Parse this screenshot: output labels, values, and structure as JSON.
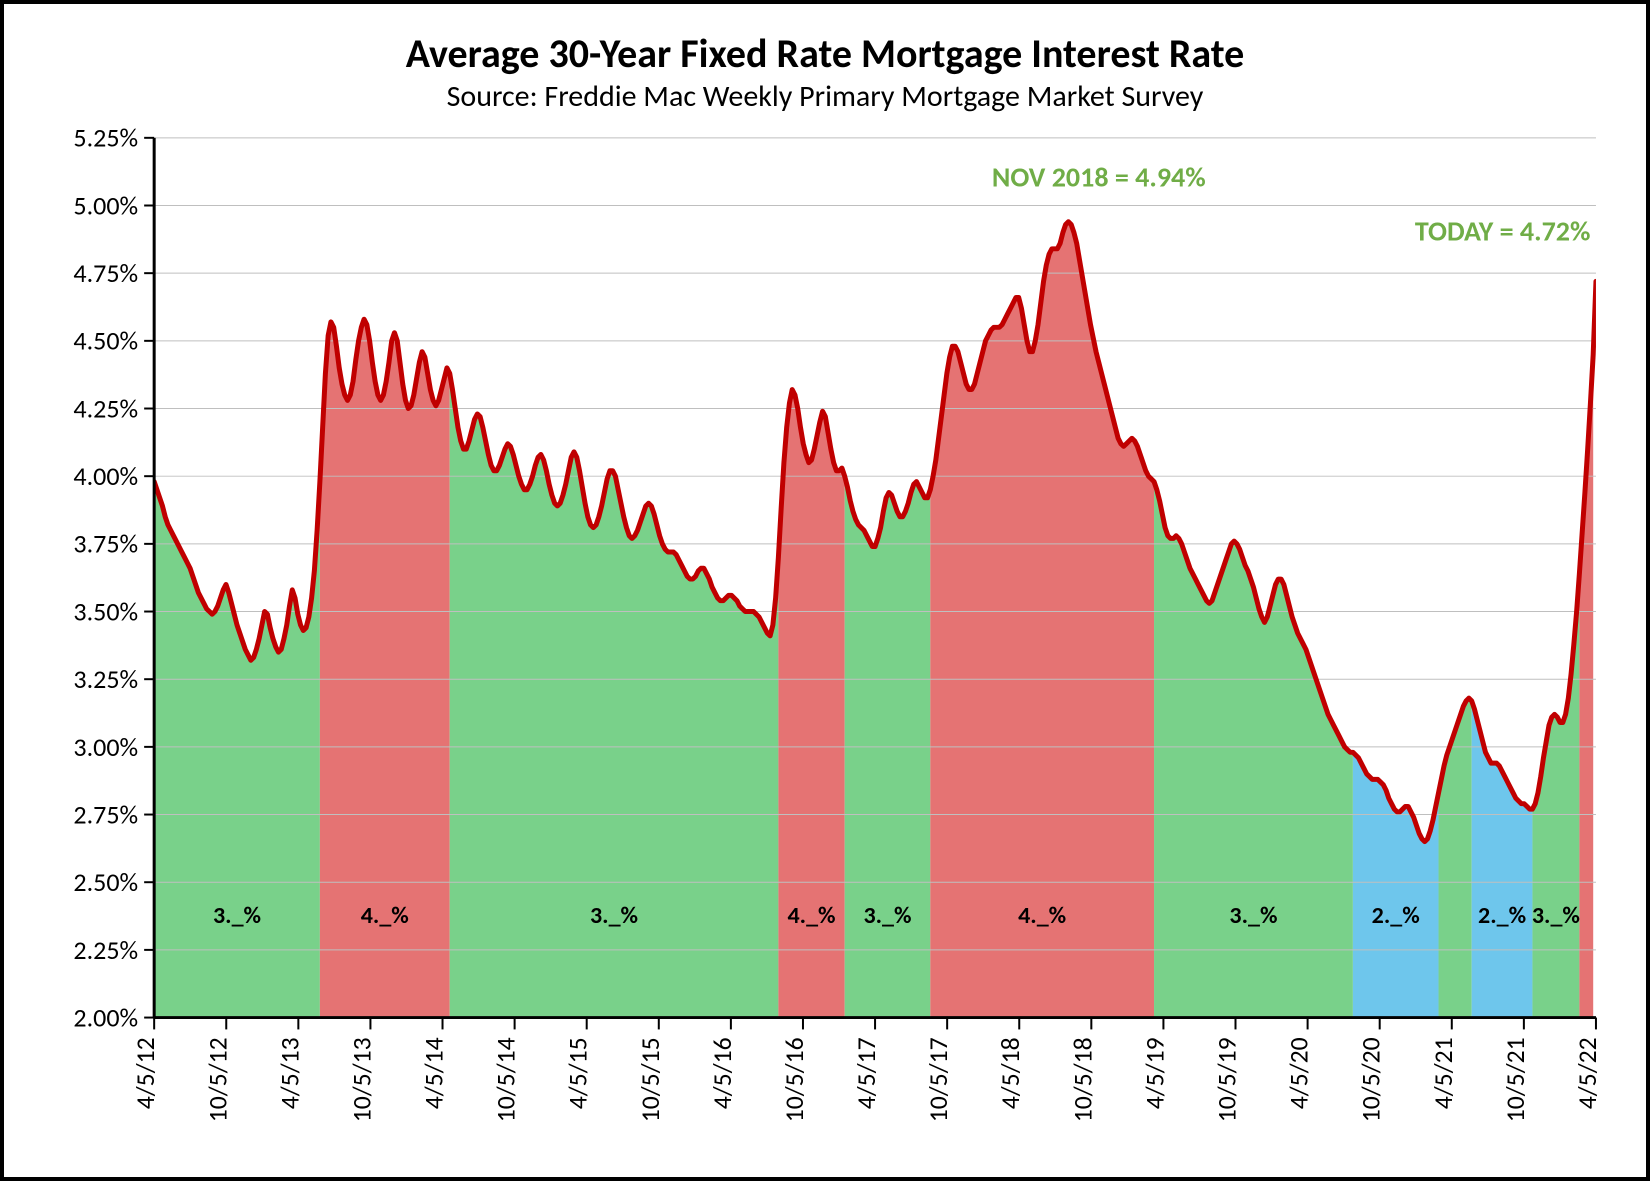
{
  "chart": {
    "type": "area-line",
    "title": "Average 30-Year Fixed Rate Mortgage Interest Rate",
    "subtitle": "Source: Freddie Mac Weekly Primary Mortgage Market Survey",
    "title_fontsize": 40,
    "subtitle_fontsize": 30,
    "background_color": "#ffffff",
    "grid_color": "#bfbfbf",
    "axis_color": "#000000",
    "line_color": "#c00000",
    "line_width": 5,
    "yaxis": {
      "min": 2.0,
      "max": 5.25,
      "step": 0.25,
      "format": "percent2",
      "ticks": [
        "2.00%",
        "2.25%",
        "2.50%",
        "2.75%",
        "3.00%",
        "3.25%",
        "3.50%",
        "3.75%",
        "4.00%",
        "4.25%",
        "4.50%",
        "4.75%",
        "5.00%",
        "5.25%"
      ]
    },
    "xaxis": {
      "labels": [
        "4/5/12",
        "10/5/12",
        "4/5/13",
        "10/5/13",
        "4/5/14",
        "10/5/14",
        "4/5/15",
        "10/5/15",
        "4/5/16",
        "10/5/16",
        "4/5/17",
        "10/5/17",
        "4/5/18",
        "10/5/18",
        "4/5/19",
        "10/5/19",
        "4/5/20",
        "10/5/20",
        "4/5/21",
        "10/5/21",
        "4/5/22"
      ],
      "rotation": -90
    },
    "bands": [
      {
        "from": 0,
        "to": 60,
        "color": "#79d18a",
        "label": "3._%"
      },
      {
        "from": 60,
        "to": 107,
        "color": "#e57373",
        "label": "4._%"
      },
      {
        "from": 107,
        "to": 226,
        "color": "#79d18a",
        "label": "3._%"
      },
      {
        "from": 226,
        "to": 250,
        "color": "#e57373",
        "label": "4._%"
      },
      {
        "from": 250,
        "to": 281,
        "color": "#79d18a",
        "label": "3._%"
      },
      {
        "from": 281,
        "to": 362,
        "color": "#e57373",
        "label": "4._%"
      },
      {
        "from": 362,
        "to": 434,
        "color": "#79d18a",
        "label": "3._%"
      },
      {
        "from": 434,
        "to": 465,
        "color": "#6ec6ec",
        "label": "2._%"
      },
      {
        "from": 465,
        "to": 477,
        "color": "#79d18a",
        "label": ""
      },
      {
        "from": 477,
        "to": 499,
        "color": "#6ec6ec",
        "label": "2._%"
      },
      {
        "from": 499,
        "to": 516,
        "color": "#79d18a",
        "label": "3._%"
      },
      {
        "from": 516,
        "to": 521,
        "color": "#e57373",
        "label": ""
      }
    ],
    "annotations": [
      {
        "text": "NOV 2018 = 4.94%",
        "x_index": 342,
        "y": 5.07,
        "anchor": "middle",
        "color": "#70ad47"
      },
      {
        "text": "TODAY = 4.72%",
        "x_index": 520,
        "y": 4.87,
        "anchor": "end",
        "color": "#70ad47"
      }
    ],
    "series": {
      "n_points": 522,
      "values": [
        3.98,
        3.95,
        3.92,
        3.89,
        3.85,
        3.82,
        3.8,
        3.78,
        3.76,
        3.74,
        3.72,
        3.7,
        3.68,
        3.66,
        3.63,
        3.6,
        3.57,
        3.55,
        3.53,
        3.51,
        3.5,
        3.49,
        3.5,
        3.52,
        3.55,
        3.58,
        3.6,
        3.57,
        3.53,
        3.49,
        3.45,
        3.42,
        3.39,
        3.36,
        3.34,
        3.32,
        3.33,
        3.36,
        3.4,
        3.45,
        3.5,
        3.49,
        3.44,
        3.4,
        3.37,
        3.35,
        3.36,
        3.4,
        3.45,
        3.52,
        3.58,
        3.55,
        3.49,
        3.45,
        3.43,
        3.44,
        3.48,
        3.55,
        3.65,
        3.8,
        3.98,
        4.18,
        4.38,
        4.52,
        4.57,
        4.55,
        4.48,
        4.4,
        4.34,
        4.3,
        4.28,
        4.3,
        4.35,
        4.43,
        4.5,
        4.55,
        4.58,
        4.56,
        4.5,
        4.42,
        4.35,
        4.3,
        4.28,
        4.3,
        4.35,
        4.42,
        4.5,
        4.53,
        4.5,
        4.42,
        4.34,
        4.28,
        4.25,
        4.26,
        4.3,
        4.36,
        4.42,
        4.46,
        4.44,
        4.38,
        4.32,
        4.28,
        4.26,
        4.28,
        4.32,
        4.36,
        4.4,
        4.38,
        4.32,
        4.25,
        4.18,
        4.13,
        4.1,
        4.1,
        4.13,
        4.17,
        4.21,
        4.23,
        4.22,
        4.18,
        4.13,
        4.08,
        4.04,
        4.02,
        4.02,
        4.04,
        4.07,
        4.1,
        4.12,
        4.11,
        4.08,
        4.04,
        4.0,
        3.97,
        3.95,
        3.95,
        3.97,
        4.0,
        4.04,
        4.07,
        4.08,
        4.06,
        4.02,
        3.97,
        3.93,
        3.9,
        3.89,
        3.9,
        3.93,
        3.97,
        4.02,
        4.07,
        4.09,
        4.07,
        4.02,
        3.96,
        3.9,
        3.85,
        3.82,
        3.81,
        3.82,
        3.85,
        3.89,
        3.94,
        3.99,
        4.02,
        4.02,
        4.0,
        3.95,
        3.9,
        3.85,
        3.81,
        3.78,
        3.77,
        3.78,
        3.8,
        3.83,
        3.86,
        3.89,
        3.9,
        3.89,
        3.86,
        3.82,
        3.78,
        3.75,
        3.73,
        3.72,
        3.72,
        3.72,
        3.71,
        3.69,
        3.67,
        3.65,
        3.63,
        3.62,
        3.62,
        3.63,
        3.65,
        3.66,
        3.66,
        3.64,
        3.62,
        3.59,
        3.57,
        3.55,
        3.54,
        3.54,
        3.55,
        3.56,
        3.56,
        3.55,
        3.54,
        3.52,
        3.51,
        3.5,
        3.5,
        3.5,
        3.5,
        3.49,
        3.48,
        3.46,
        3.44,
        3.42,
        3.41,
        3.45,
        3.55,
        3.7,
        3.88,
        4.05,
        4.18,
        4.27,
        4.32,
        4.3,
        4.25,
        4.18,
        4.12,
        4.08,
        4.05,
        4.06,
        4.1,
        4.15,
        4.2,
        4.24,
        4.22,
        4.16,
        4.1,
        4.05,
        4.02,
        4.02,
        4.03,
        4.0,
        3.96,
        3.91,
        3.87,
        3.84,
        3.82,
        3.81,
        3.8,
        3.78,
        3.76,
        3.74,
        3.74,
        3.77,
        3.81,
        3.87,
        3.92,
        3.94,
        3.93,
        3.9,
        3.87,
        3.85,
        3.85,
        3.87,
        3.9,
        3.94,
        3.97,
        3.98,
        3.96,
        3.94,
        3.92,
        3.92,
        3.95,
        4.0,
        4.06,
        4.14,
        4.22,
        4.3,
        4.38,
        4.44,
        4.48,
        4.48,
        4.46,
        4.42,
        4.38,
        4.34,
        4.32,
        4.32,
        4.34,
        4.38,
        4.42,
        4.46,
        4.5,
        4.52,
        4.54,
        4.55,
        4.55,
        4.55,
        4.56,
        4.58,
        4.6,
        4.62,
        4.64,
        4.66,
        4.66,
        4.62,
        4.56,
        4.5,
        4.46,
        4.46,
        4.5,
        4.56,
        4.64,
        4.72,
        4.78,
        4.82,
        4.84,
        4.84,
        4.84,
        4.86,
        4.9,
        4.93,
        4.94,
        4.93,
        4.9,
        4.86,
        4.8,
        4.74,
        4.68,
        4.62,
        4.56,
        4.51,
        4.46,
        4.42,
        4.38,
        4.34,
        4.3,
        4.26,
        4.22,
        4.18,
        4.14,
        4.12,
        4.11,
        4.12,
        4.13,
        4.14,
        4.13,
        4.11,
        4.08,
        4.05,
        4.02,
        4.0,
        3.99,
        3.98,
        3.95,
        3.91,
        3.86,
        3.81,
        3.78,
        3.77,
        3.77,
        3.78,
        3.77,
        3.75,
        3.72,
        3.69,
        3.66,
        3.64,
        3.62,
        3.6,
        3.58,
        3.56,
        3.54,
        3.53,
        3.54,
        3.57,
        3.6,
        3.63,
        3.66,
        3.69,
        3.72,
        3.75,
        3.76,
        3.75,
        3.73,
        3.7,
        3.67,
        3.65,
        3.62,
        3.59,
        3.55,
        3.51,
        3.48,
        3.46,
        3.48,
        3.52,
        3.56,
        3.6,
        3.62,
        3.62,
        3.6,
        3.56,
        3.52,
        3.48,
        3.45,
        3.42,
        3.4,
        3.38,
        3.36,
        3.33,
        3.3,
        3.27,
        3.24,
        3.21,
        3.18,
        3.15,
        3.12,
        3.1,
        3.08,
        3.06,
        3.04,
        3.02,
        3.0,
        2.99,
        2.98,
        2.98,
        2.97,
        2.96,
        2.94,
        2.92,
        2.9,
        2.89,
        2.88,
        2.88,
        2.88,
        2.87,
        2.86,
        2.84,
        2.81,
        2.79,
        2.77,
        2.76,
        2.76,
        2.77,
        2.78,
        2.78,
        2.76,
        2.74,
        2.71,
        2.68,
        2.66,
        2.65,
        2.66,
        2.69,
        2.73,
        2.78,
        2.83,
        2.88,
        2.93,
        2.97,
        3.0,
        3.03,
        3.06,
        3.09,
        3.12,
        3.15,
        3.17,
        3.18,
        3.17,
        3.14,
        3.1,
        3.06,
        3.02,
        2.98,
        2.96,
        2.94,
        2.94,
        2.94,
        2.93,
        2.91,
        2.89,
        2.87,
        2.85,
        2.83,
        2.81,
        2.8,
        2.79,
        2.79,
        2.78,
        2.77,
        2.77,
        2.79,
        2.83,
        2.89,
        2.96,
        3.02,
        3.08,
        3.11,
        3.12,
        3.11,
        3.09,
        3.09,
        3.12,
        3.18,
        3.27,
        3.38,
        3.5,
        3.64,
        3.79,
        3.94,
        4.1,
        4.27,
        4.45,
        4.72
      ]
    }
  }
}
